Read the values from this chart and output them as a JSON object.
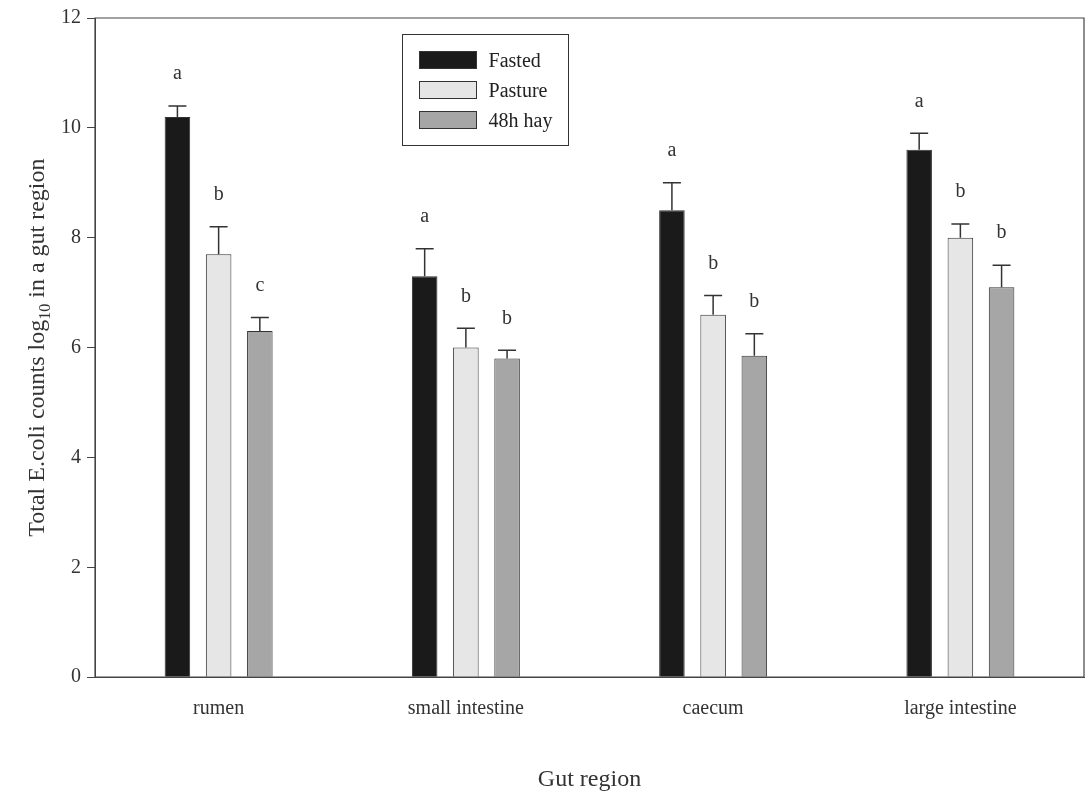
{
  "chart_data": {
    "type": "bar",
    "xlabel": "Gut region",
    "ylabel": "Total E.coli counts log$_{10}$ in a gut region",
    "categories": [
      "rumen",
      "small intestine",
      "caecum",
      "large intestine"
    ],
    "series": [
      {
        "name": "Fasted",
        "color": "#1a1a1a",
        "values": [
          10.2,
          7.3,
          8.5,
          9.6
        ],
        "errors": [
          [
            10.2,
            10.4
          ],
          [
            7.3,
            7.8
          ],
          [
            8.5,
            9.0
          ],
          [
            9.6,
            9.9
          ]
        ],
        "value_labels": [
          "a",
          "a",
          "a",
          "a"
        ]
      },
      {
        "name": "Pasture",
        "color": "#e6e6e6",
        "values": [
          7.7,
          6.0,
          6.6,
          8.0
        ],
        "errors": [
          [
            7.7,
            8.2
          ],
          [
            6.0,
            6.35
          ],
          [
            6.6,
            6.95
          ],
          [
            8.0,
            8.25
          ]
        ],
        "value_labels": [
          "b",
          "b",
          "b",
          "b"
        ]
      },
      {
        "name": "48h hay",
        "color": "#a6a6a6",
        "values": [
          6.3,
          5.8,
          5.85,
          7.1
        ],
        "errors": [
          [
            6.3,
            6.55
          ],
          [
            5.8,
            5.95
          ],
          [
            5.85,
            6.25
          ],
          [
            7.1,
            7.5
          ]
        ],
        "value_labels": [
          "c",
          "b",
          "b",
          "b"
        ]
      }
    ],
    "ylim": [
      0,
      12
    ],
    "yticks": [
      0,
      2,
      4,
      6,
      8,
      10,
      12
    ],
    "grid": false,
    "legend": "top"
  }
}
